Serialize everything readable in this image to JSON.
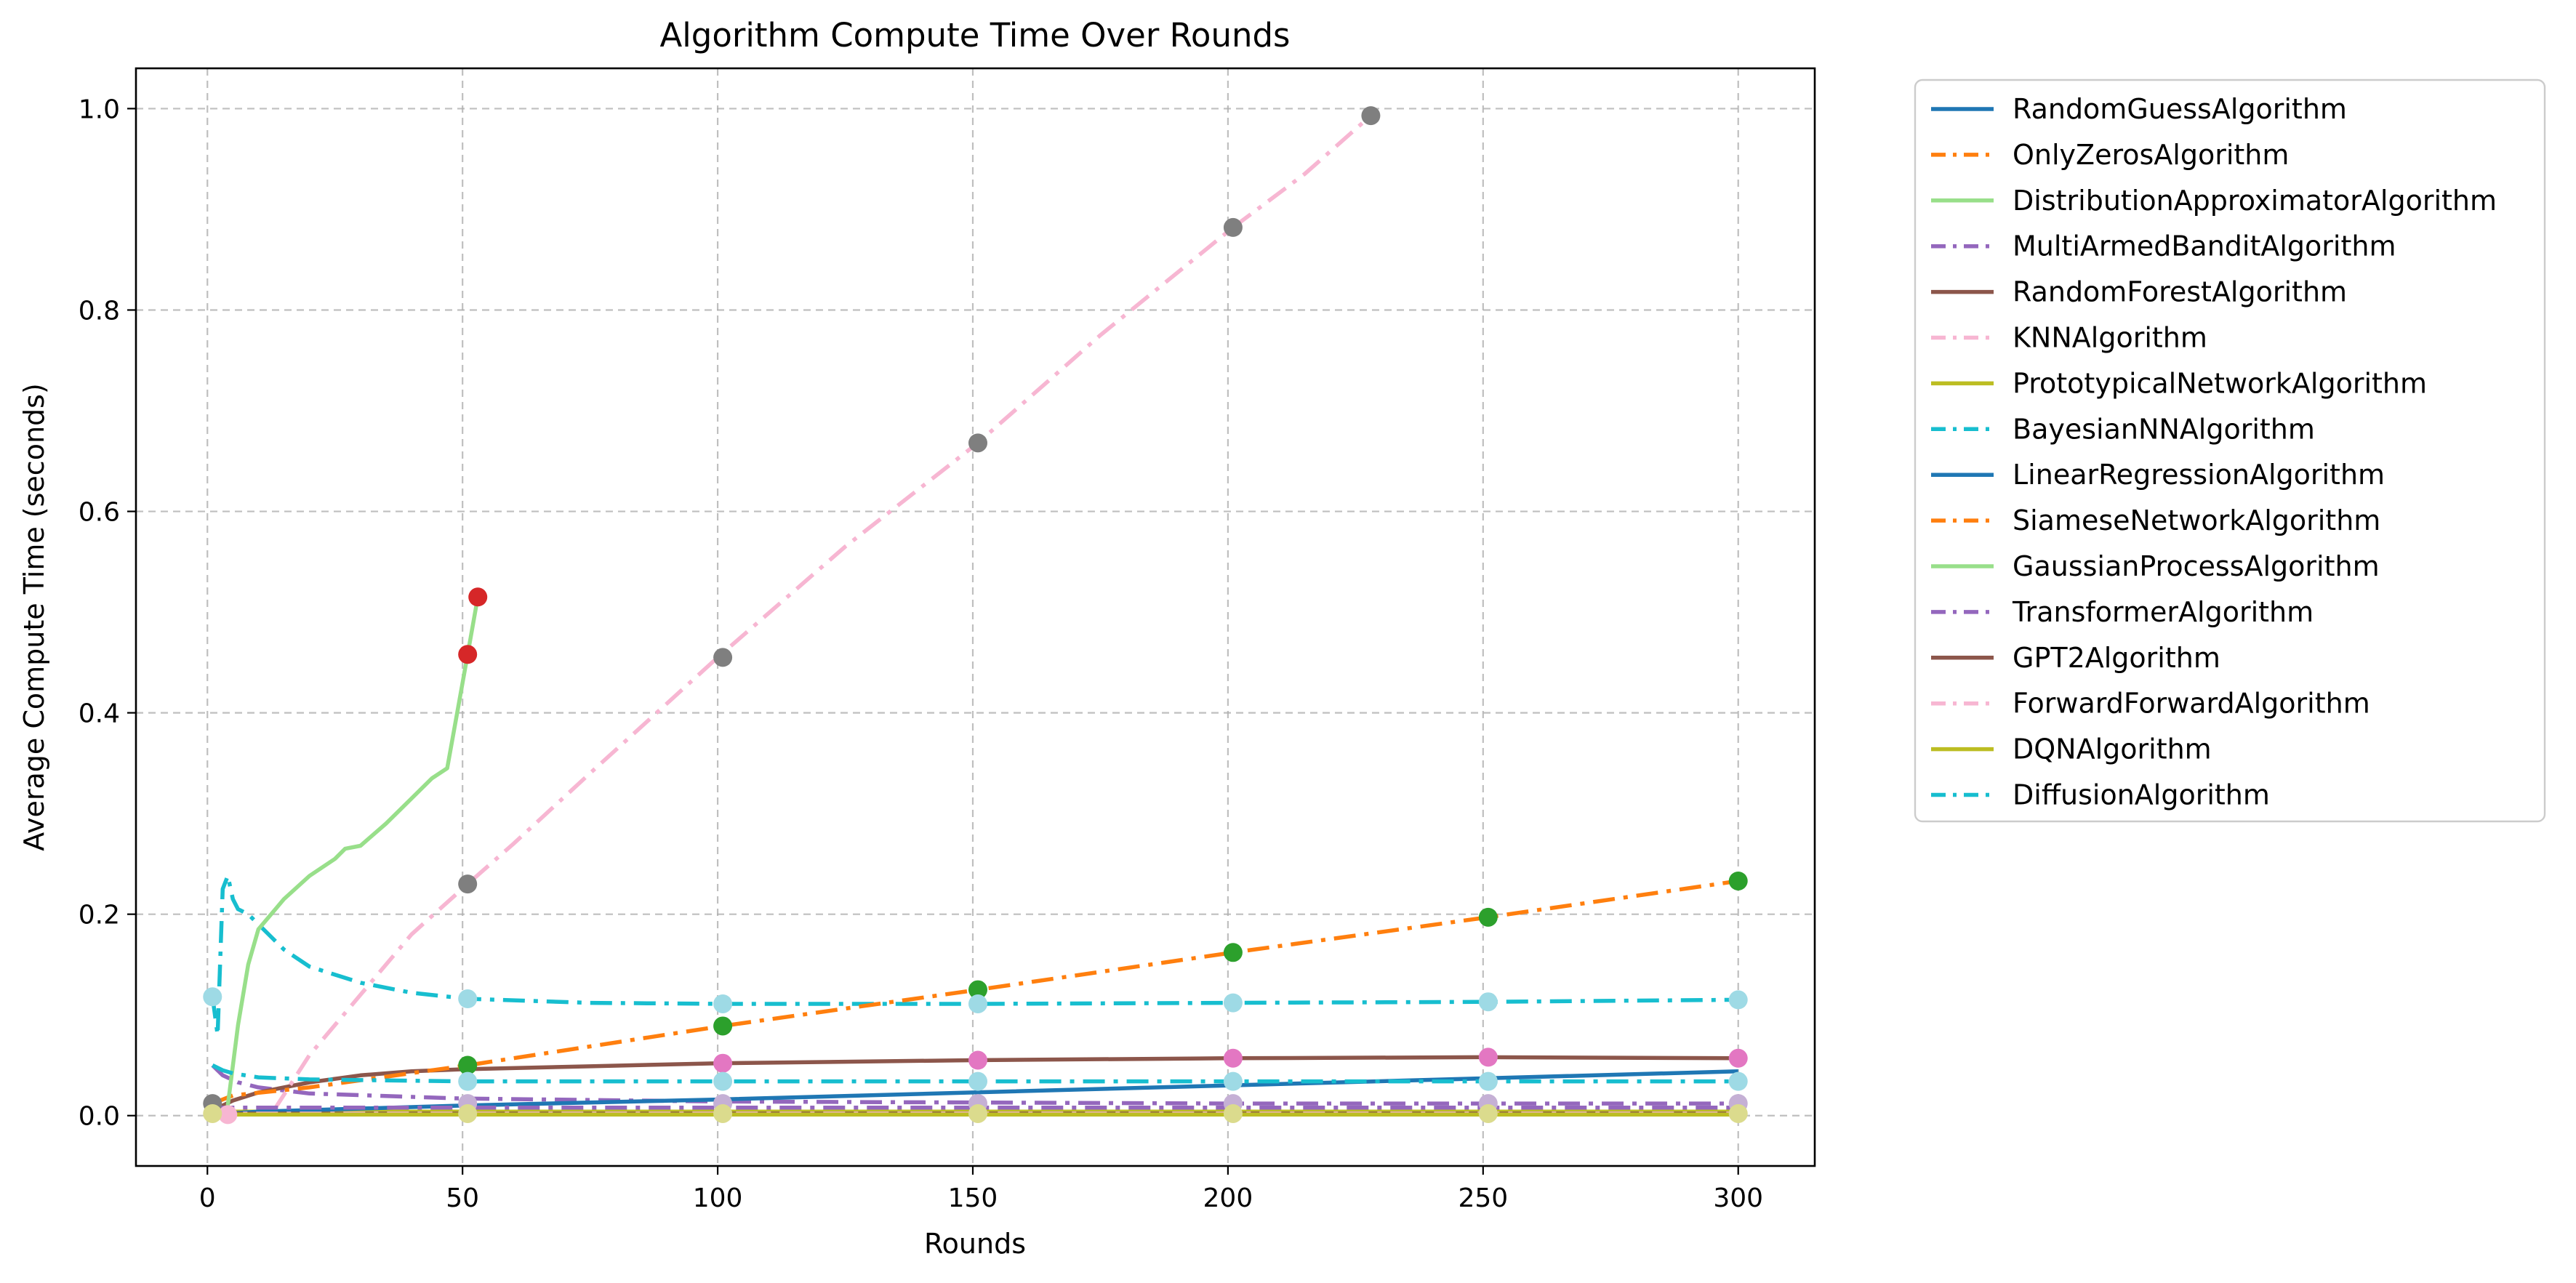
{
  "chart_data": {
    "type": "line",
    "title": "Algorithm Compute Time Over Rounds",
    "xlabel": "Rounds",
    "ylabel": "Average Compute Time (seconds)",
    "xlim": [
      -14,
      315
    ],
    "ylim": [
      -0.05,
      1.04
    ],
    "xticks": [
      0,
      50,
      100,
      150,
      200,
      250,
      300
    ],
    "xtick_labels": [
      "0",
      "50",
      "100",
      "150",
      "200",
      "250",
      "300"
    ],
    "yticks": [
      0.0,
      0.2,
      0.4,
      0.6,
      0.8,
      1.0
    ],
    "ytick_labels": [
      "0.0",
      "0.2",
      "0.4",
      "0.6",
      "0.8",
      "1.0"
    ],
    "grid": true,
    "legend_position": "outside-right",
    "series": [
      {
        "name": "RandomGuessAlgorithm",
        "color": "#1f77b4",
        "dash": "solid",
        "x": [
          1,
          50,
          100,
          150,
          200,
          250,
          300
        ],
        "y": [
          0.001,
          0.001,
          0.001,
          0.001,
          0.001,
          0.001,
          0.001
        ]
      },
      {
        "name": "OnlyZerosAlgorithm",
        "color": "#ff7f0e",
        "dash": "dashdot",
        "x": [
          1,
          50,
          100,
          150,
          200,
          250,
          300
        ],
        "y": [
          0.001,
          0.001,
          0.001,
          0.001,
          0.001,
          0.001,
          0.001
        ]
      },
      {
        "name": "DistributionApproximatorAlgorithm",
        "color": "#98df8a",
        "dash": "solid",
        "x": [
          1,
          50,
          100,
          150,
          200,
          250,
          300
        ],
        "y": [
          0.003,
          0.003,
          0.003,
          0.003,
          0.003,
          0.003,
          0.003
        ]
      },
      {
        "name": "MultiArmedBanditAlgorithm",
        "color": "#9467bd",
        "dash": "dashdot",
        "x": [
          1,
          3,
          6,
          10,
          20,
          50,
          100,
          150,
          200,
          250,
          300
        ],
        "y": [
          0.05,
          0.04,
          0.033,
          0.028,
          0.022,
          0.017,
          0.014,
          0.013,
          0.012,
          0.012,
          0.012
        ]
      },
      {
        "name": "RandomForestAlgorithm",
        "color": "#8c564b",
        "dash": "solid",
        "x": [
          1,
          5,
          10,
          20,
          30,
          40,
          50,
          75,
          100,
          150,
          200,
          250,
          300
        ],
        "y": [
          0.005,
          0.015,
          0.023,
          0.033,
          0.04,
          0.044,
          0.046,
          0.049,
          0.052,
          0.055,
          0.057,
          0.058,
          0.057
        ]
      },
      {
        "name": "KNNAlgorithm",
        "color": "#f7b6d2",
        "dash": "dashdot",
        "x": [
          13,
          20,
          30,
          40,
          51,
          60,
          75,
          100,
          125,
          151,
          175,
          201,
          215,
          228
        ],
        "y": [
          0.005,
          0.06,
          0.12,
          0.18,
          0.23,
          0.27,
          0.34,
          0.455,
          0.565,
          0.668,
          0.775,
          0.882,
          0.935,
          0.993
        ]
      },
      {
        "name": "PrototypicalNetworkAlgorithm",
        "color": "#bcbd22",
        "dash": "solid",
        "x": [
          1,
          50,
          100,
          150,
          200,
          250,
          300
        ],
        "y": [
          0.004,
          0.004,
          0.004,
          0.004,
          0.004,
          0.004,
          0.004
        ]
      },
      {
        "name": "BayesianNNAlgorithm",
        "color": "#17becf",
        "dash": "dashdot",
        "x": [
          1,
          2,
          3,
          4,
          5,
          6,
          8,
          10,
          15,
          20,
          30,
          40,
          51,
          75,
          101,
          151,
          201,
          251,
          300
        ],
        "y": [
          0.118,
          0.08,
          0.225,
          0.238,
          0.215,
          0.205,
          0.2,
          0.19,
          0.165,
          0.148,
          0.132,
          0.122,
          0.116,
          0.112,
          0.111,
          0.111,
          0.112,
          0.113,
          0.115
        ]
      },
      {
        "name": "LinearRegressionAlgorithm",
        "color": "#1f77b4",
        "dash": "solid",
        "x": [
          1,
          10,
          50,
          100,
          150,
          200,
          250,
          300
        ],
        "y": [
          0.001,
          0.004,
          0.01,
          0.016,
          0.023,
          0.03,
          0.037,
          0.044
        ]
      },
      {
        "name": "SiameseNetworkAlgorithm",
        "color": "#ff7f0e",
        "dash": "dashdot",
        "x": [
          1,
          5,
          20,
          51,
          101,
          151,
          201,
          251,
          300
        ],
        "y": [
          0.012,
          0.02,
          0.028,
          0.05,
          0.089,
          0.125,
          0.162,
          0.197,
          0.233
        ]
      },
      {
        "name": "GaussianProcessAlgorithm",
        "color": "#98df8a",
        "dash": "solid",
        "x": [
          4,
          6,
          8,
          10,
          15,
          20,
          25,
          27,
          30,
          35,
          40,
          44,
          47,
          51,
          53
        ],
        "y": [
          0.01,
          0.09,
          0.15,
          0.185,
          0.215,
          0.238,
          0.255,
          0.265,
          0.268,
          0.29,
          0.315,
          0.335,
          0.345,
          0.458,
          0.515
        ]
      },
      {
        "name": "TransformerAlgorithm",
        "color": "#9467bd",
        "dash": "dashdot",
        "x": [
          1,
          50,
          100,
          150,
          200,
          250,
          300
        ],
        "y": [
          0.008,
          0.008,
          0.008,
          0.008,
          0.008,
          0.008,
          0.008
        ]
      },
      {
        "name": "GPT2Algorithm",
        "color": "#8c564b",
        "dash": "solid",
        "x": [
          1,
          50,
          100,
          150,
          200,
          250,
          300
        ],
        "y": [
          0.002,
          0.002,
          0.002,
          0.002,
          0.002,
          0.002,
          0.002
        ]
      },
      {
        "name": "ForwardForwardAlgorithm",
        "color": "#f7b6d2",
        "dash": "dashdot",
        "x": [
          1,
          50,
          100,
          150,
          200,
          250,
          300
        ],
        "y": [
          0.002,
          0.002,
          0.002,
          0.002,
          0.002,
          0.002,
          0.002
        ]
      },
      {
        "name": "DQNAlgorithm",
        "color": "#bcbd22",
        "dash": "solid",
        "x": [
          1,
          50,
          100,
          150,
          200,
          250,
          300
        ],
        "y": [
          0.001,
          0.001,
          0.001,
          0.001,
          0.001,
          0.001,
          0.001
        ]
      },
      {
        "name": "DiffusionAlgorithm",
        "color": "#17becf",
        "dash": "dashdot",
        "x": [
          1,
          3,
          5,
          10,
          20,
          50,
          100,
          150,
          200,
          250,
          300
        ],
        "y": [
          0.05,
          0.045,
          0.042,
          0.038,
          0.036,
          0.034,
          0.034,
          0.034,
          0.034,
          0.034,
          0.034
        ]
      }
    ],
    "markers": [
      {
        "color": "#7f7f7f",
        "x": [
          51,
          101,
          151,
          201,
          228
        ],
        "y": [
          0.23,
          0.455,
          0.668,
          0.882,
          0.993
        ]
      },
      {
        "color": "#d62728",
        "x": [
          51,
          53
        ],
        "y": [
          0.458,
          0.515
        ]
      },
      {
        "color": "#2ca02c",
        "x": [
          51,
          101,
          151,
          201,
          251,
          300
        ],
        "y": [
          0.05,
          0.089,
          0.125,
          0.162,
          0.197,
          0.233
        ]
      },
      {
        "color": "#9edae5",
        "x": [
          1,
          51,
          101,
          151,
          201,
          251,
          300
        ],
        "y": [
          0.118,
          0.116,
          0.111,
          0.111,
          0.112,
          0.113,
          0.115
        ]
      },
      {
        "color": "#e377c2",
        "x": [
          101,
          151,
          201,
          251,
          300
        ],
        "y": [
          0.052,
          0.055,
          0.057,
          0.058,
          0.057
        ]
      },
      {
        "color": "#9edae5",
        "x": [
          51,
          101,
          151,
          201,
          251,
          300
        ],
        "y": [
          0.034,
          0.034,
          0.034,
          0.034,
          0.034,
          0.034
        ]
      },
      {
        "color": "#c5b0d5",
        "x": [
          51,
          101,
          151,
          201,
          251,
          300
        ],
        "y": [
          0.012,
          0.012,
          0.012,
          0.012,
          0.012,
          0.012
        ]
      },
      {
        "color": "#f7b6d2",
        "x": [
          4
        ],
        "y": [
          0.001
        ]
      },
      {
        "color": "#7f7f7f",
        "x": [
          1
        ],
        "y": [
          0.012
        ]
      },
      {
        "color": "#dbdb8d",
        "x": [
          1,
          51,
          101,
          151,
          201,
          251,
          300
        ],
        "y": [
          0.002,
          0.002,
          0.002,
          0.002,
          0.002,
          0.002,
          0.002
        ]
      }
    ]
  }
}
